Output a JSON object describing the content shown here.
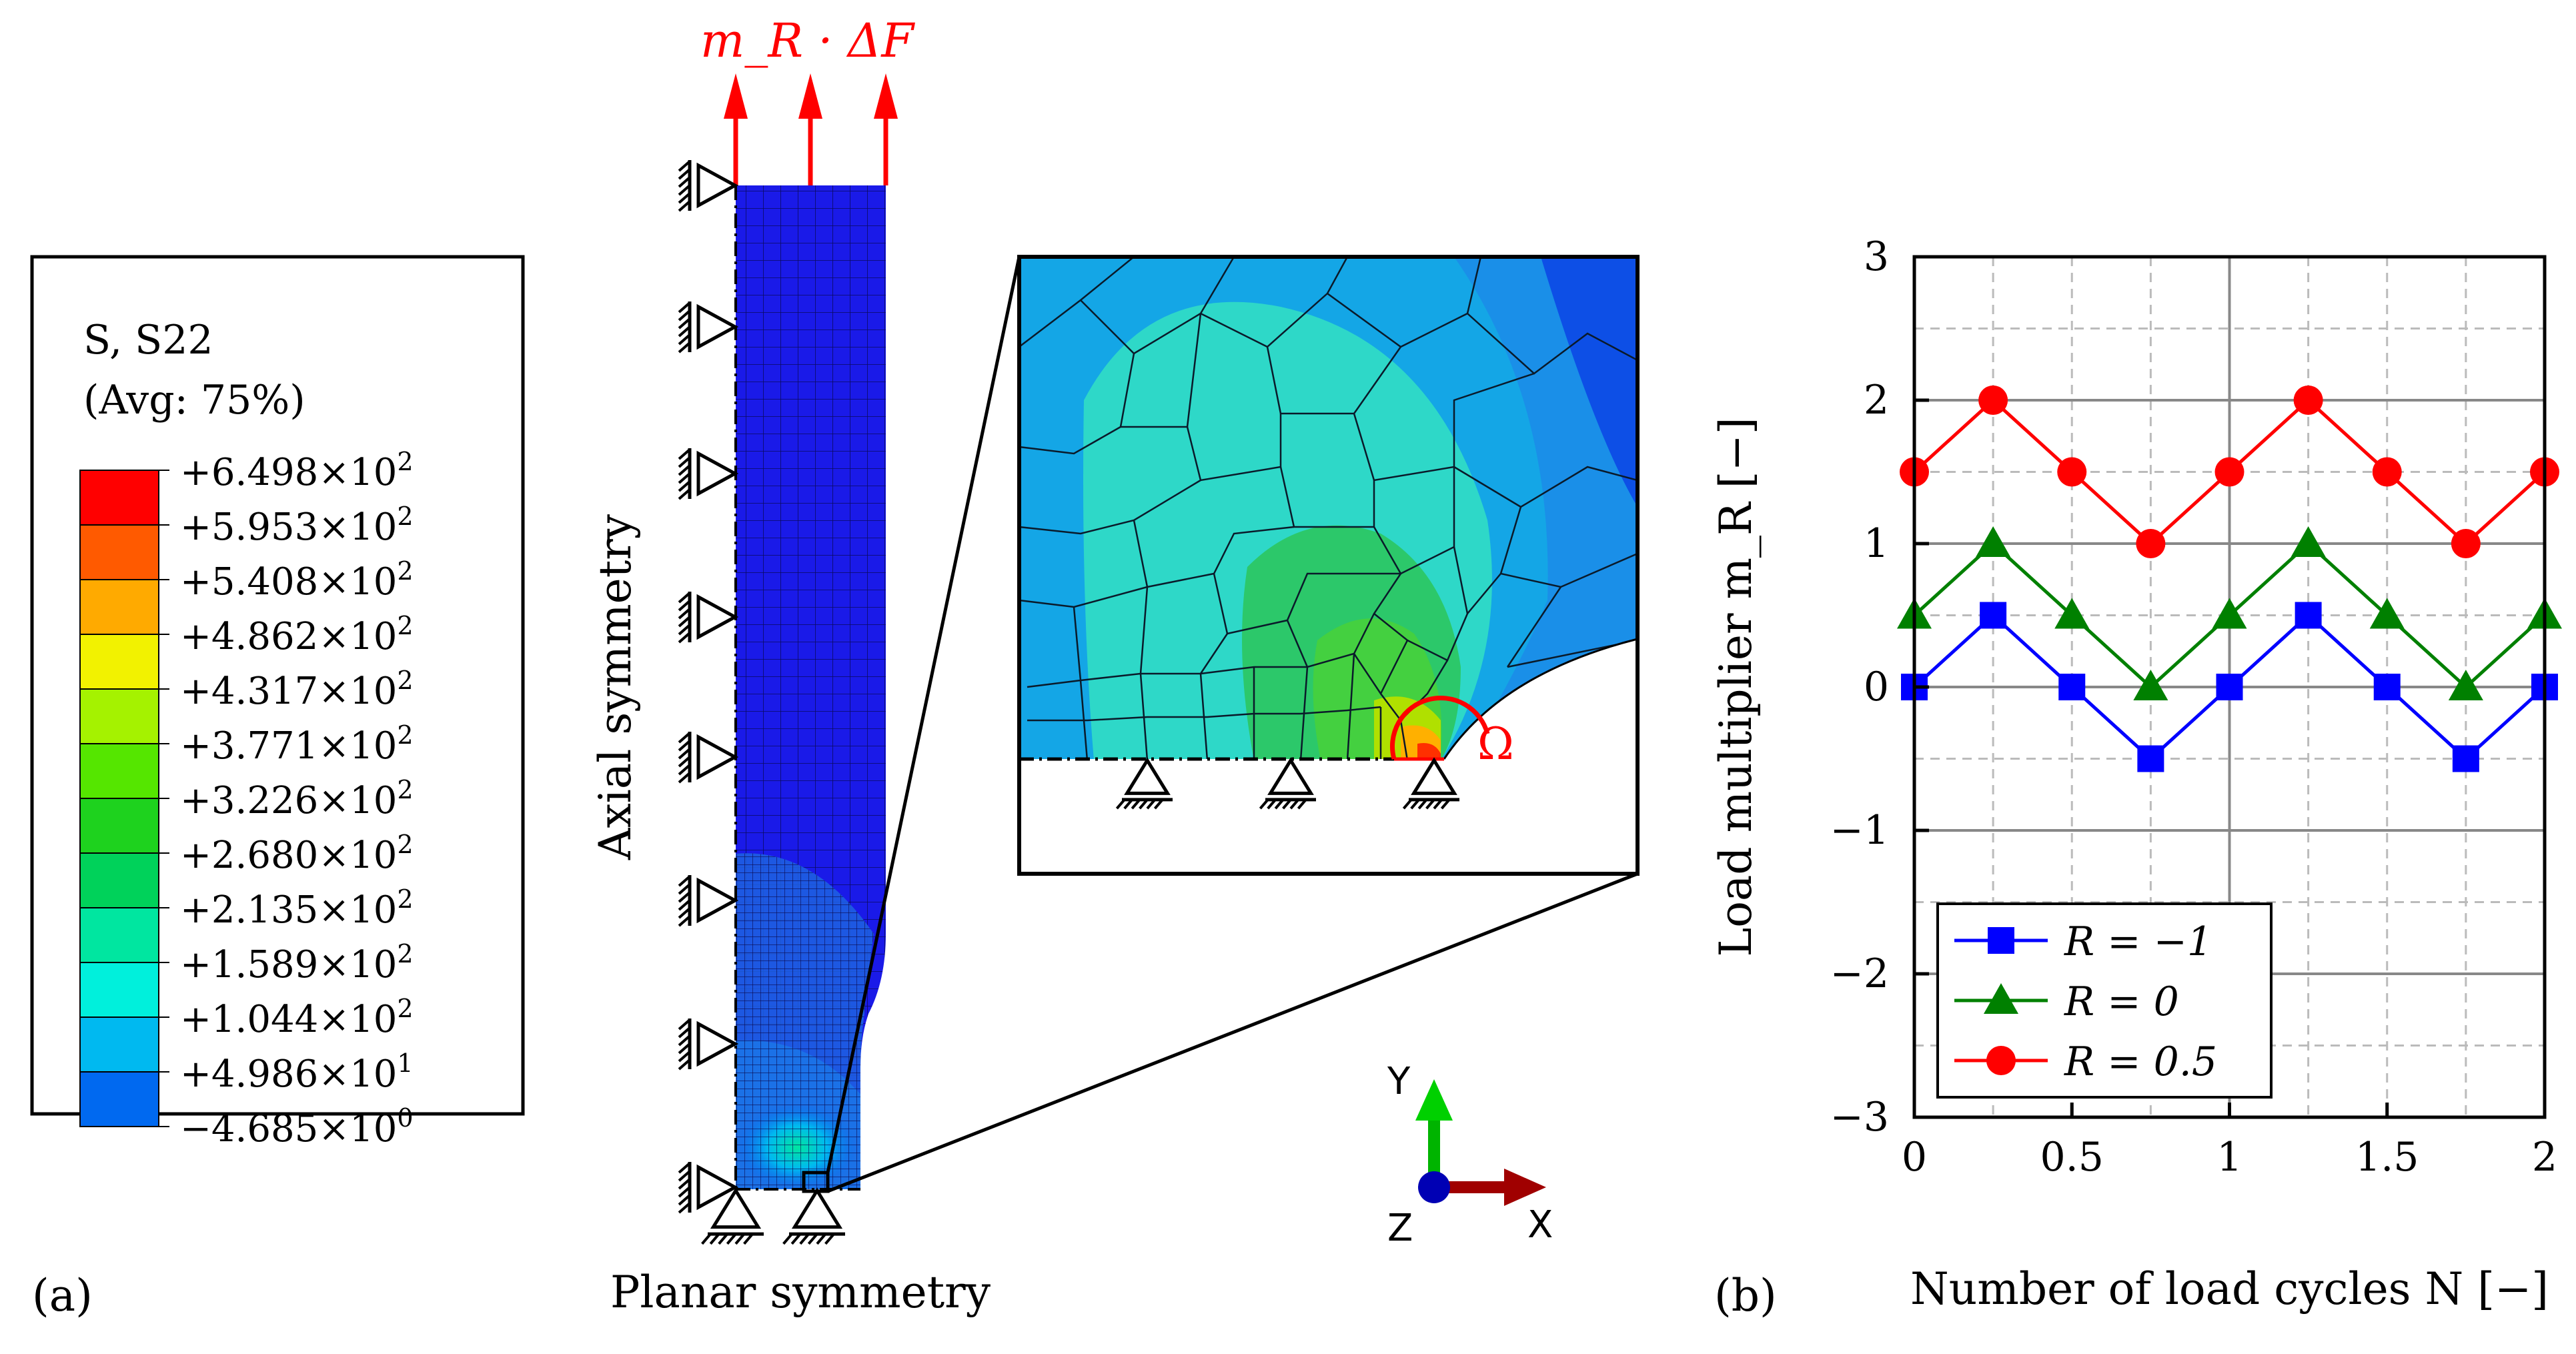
{
  "figure": {
    "panel_a": "(a)",
    "panel_b": "(b)",
    "load_label": "m_R · ΔF",
    "axial_label": "Axial symmetry",
    "planar_label": "Planar symmetry",
    "omega": "Ω"
  },
  "legend": {
    "title1": "S, S22",
    "title2": "(Avg: 75%)",
    "entries": [
      {
        "mant": "+6.498",
        "exp": "2",
        "color": "#ff0000"
      },
      {
        "mant": "+5.953",
        "exp": "2",
        "color": "#ff5a00"
      },
      {
        "mant": "+5.408",
        "exp": "2",
        "color": "#ffaa00"
      },
      {
        "mant": "+4.862",
        "exp": "2",
        "color": "#f2f200"
      },
      {
        "mant": "+4.317",
        "exp": "2",
        "color": "#a5f200"
      },
      {
        "mant": "+3.771",
        "exp": "2",
        "color": "#55e600"
      },
      {
        "mant": "+3.226",
        "exp": "2",
        "color": "#1ed21e"
      },
      {
        "mant": "+2.680",
        "exp": "2",
        "color": "#00d25a"
      },
      {
        "mant": "+2.135",
        "exp": "2",
        "color": "#00e6a0"
      },
      {
        "mant": "+1.589",
        "exp": "2",
        "color": "#00f0dc"
      },
      {
        "mant": "+1.044",
        "exp": "2",
        "color": "#00b9f0"
      },
      {
        "mant": "+4.986",
        "exp": "1",
        "color": "#0069f0"
      },
      {
        "mant": "−4.685",
        "exp": "0",
        "color": "#0000ff"
      }
    ]
  },
  "triad": {
    "x": "X",
    "y": "Y",
    "z": "Z"
  },
  "chart_data": {
    "type": "line",
    "xlabel": "Number of load cycles N [−]",
    "ylabel": "Load multiplier m_R [−]",
    "xlim": [
      0,
      2
    ],
    "ylim": [
      -3,
      3
    ],
    "xticks": [
      0,
      0.5,
      1,
      1.5,
      2
    ],
    "xtick_labels": [
      "0",
      "0.5",
      "1",
      "1.5",
      "2"
    ],
    "yticks": [
      -3,
      -2,
      -1,
      0,
      1,
      2,
      3
    ],
    "ytick_labels": [
      "−3",
      "−2",
      "−1",
      "0",
      "1",
      "2",
      "3"
    ],
    "grid": true,
    "legend_position": "lower-left",
    "x": [
      0,
      0.25,
      0.5,
      0.75,
      1,
      1.25,
      1.5,
      1.75,
      2
    ],
    "series": [
      {
        "name": "R = −1",
        "color": "#0000ff",
        "marker": "square",
        "values": [
          0,
          0.5,
          0,
          -0.5,
          0,
          0.5,
          0,
          -0.5,
          0
        ]
      },
      {
        "name": "R = 0",
        "color": "#008000",
        "marker": "triangle",
        "values": [
          0.5,
          1,
          0.5,
          0,
          0.5,
          1,
          0.5,
          0,
          0.5
        ]
      },
      {
        "name": "R = 0.5",
        "color": "#ff0000",
        "marker": "circle",
        "values": [
          1.5,
          2,
          1.5,
          1,
          1.5,
          2,
          1.5,
          1,
          1.5
        ]
      }
    ]
  },
  "colors": {
    "red": "#ff0000",
    "green": "#00c000",
    "blue": "#0000cc",
    "darkred": "#a00000",
    "mesh_blue": "#1a1ae0"
  }
}
